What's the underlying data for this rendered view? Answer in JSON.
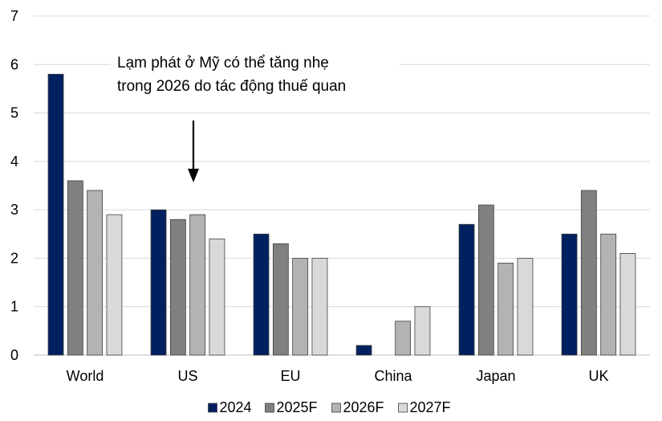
{
  "chart_data": {
    "type": "bar",
    "categories": [
      "World",
      "US",
      "EU",
      "China",
      "Japan",
      "UK"
    ],
    "series": [
      {
        "name": "2024",
        "color": "#002060",
        "values": [
          5.8,
          3.0,
          2.5,
          0.2,
          2.7,
          2.5
        ]
      },
      {
        "name": "2025F",
        "color": "#808080",
        "values": [
          3.6,
          2.8,
          2.3,
          null,
          3.1,
          3.4
        ]
      },
      {
        "name": "2026F",
        "color": "#b3b3b3",
        "values": [
          3.4,
          2.9,
          2.0,
          0.7,
          1.9,
          2.5
        ]
      },
      {
        "name": "2027F",
        "color": "#d9d9d9",
        "values": [
          2.9,
          2.4,
          2.0,
          1.0,
          2.0,
          2.1
        ]
      }
    ],
    "ylim": [
      0,
      7
    ],
    "yticks": [
      0,
      1,
      2,
      3,
      4,
      5,
      6,
      7
    ],
    "grid": true,
    "legend": "bottom-center",
    "annotation": {
      "lines": [
        "Lạm phát ở Mỹ có thể tăng nhẹ",
        "trong 2026 do tác động thuế quan"
      ],
      "arrow_target": "US"
    }
  }
}
